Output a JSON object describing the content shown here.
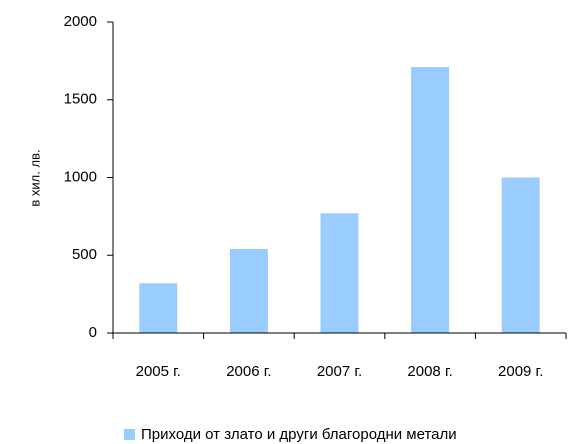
{
  "chart_data": {
    "type": "bar",
    "y_label": "в хил. лв.",
    "categories": [
      "2005 г.",
      "2006 г.",
      "2007 г.",
      "2008 г.",
      "2009 г."
    ],
    "series": [
      {
        "name": "Приходи от злато и други благородни метали",
        "color": "#99ccff",
        "values": [
          320,
          540,
          770,
          1710,
          1000
        ]
      }
    ],
    "ylim": [
      0,
      2000
    ],
    "yticks": [
      0,
      500,
      1000,
      1500,
      2000
    ],
    "grid": false,
    "legend": "bottom"
  }
}
